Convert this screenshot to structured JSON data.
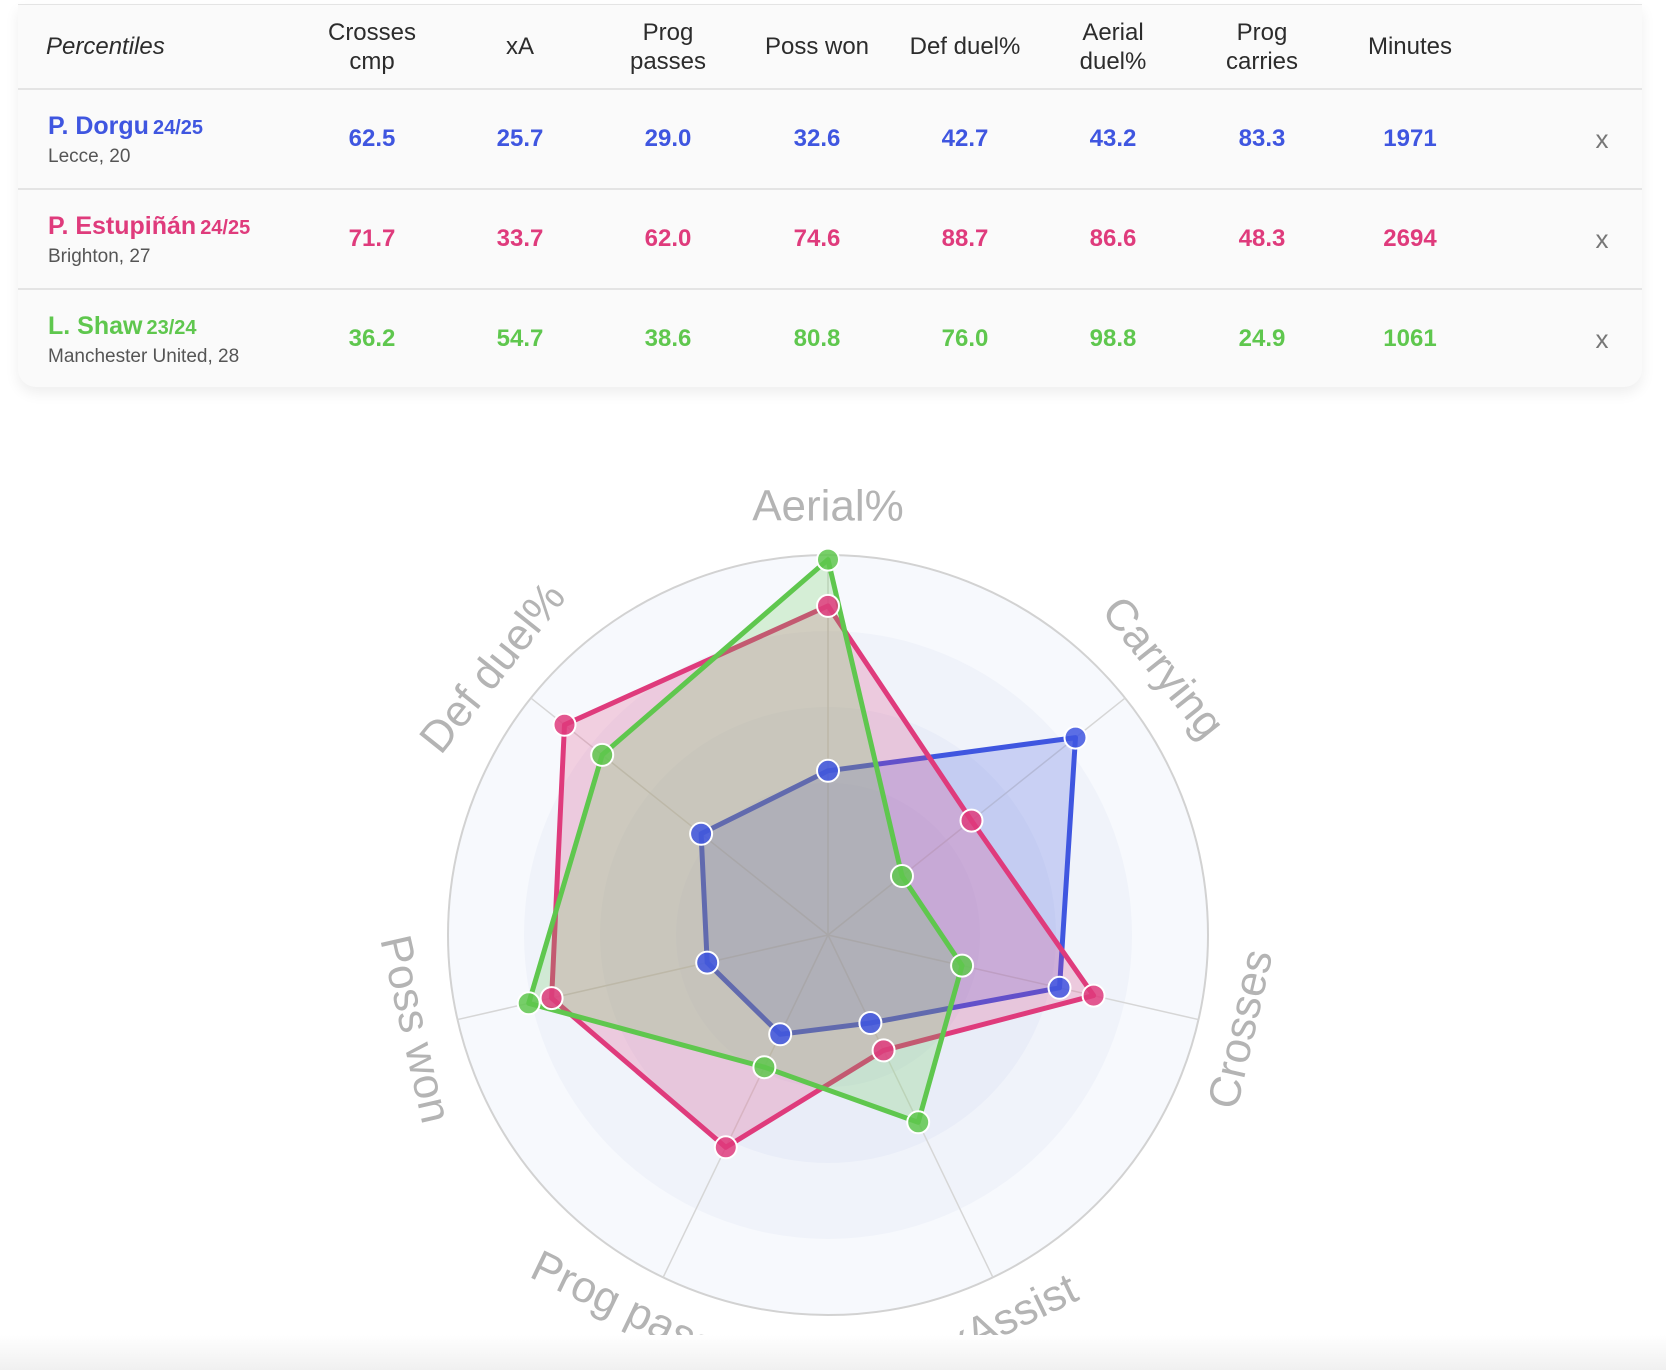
{
  "table": {
    "corner_label": "Percentiles",
    "headers": [
      [
        "Crosses",
        "cmp"
      ],
      [
        "xA"
      ],
      [
        "Prog",
        "passes"
      ],
      [
        "Poss won"
      ],
      [
        "Def duel%"
      ],
      [
        "Aerial",
        "duel%"
      ],
      [
        "Prog",
        "carries"
      ],
      [
        "Minutes"
      ]
    ],
    "remove_label": "x",
    "players": [
      {
        "name": "P. Dorgu",
        "season": "24/25",
        "team": "Lecce, 20",
        "color": "#3f56e0",
        "values": [
          "62.5",
          "25.7",
          "29.0",
          "32.6",
          "42.7",
          "43.2",
          "83.3",
          "1971"
        ]
      },
      {
        "name": "P. Estupiñán",
        "season": "24/25",
        "team": "Brighton, 27",
        "color": "#df3b7c",
        "values": [
          "71.7",
          "33.7",
          "62.0",
          "74.6",
          "88.7",
          "86.6",
          "48.3",
          "2694"
        ]
      },
      {
        "name": "L. Shaw",
        "season": "23/24",
        "team": "Manchester United, 28",
        "color": "#5fc74e",
        "values": [
          "36.2",
          "54.7",
          "38.6",
          "80.8",
          "76.0",
          "98.8",
          "24.9",
          "1061"
        ]
      }
    ]
  },
  "chart_data": {
    "type": "radar",
    "axes": [
      "Aerial%",
      "Carrying",
      "Crosses",
      "xAssist",
      "Prog passes",
      "Poss won",
      "Def duel%"
    ],
    "range": [
      0,
      100
    ],
    "series": [
      {
        "name": "P. Dorgu",
        "color": "#3f56e0",
        "values": [
          43.2,
          83.3,
          62.5,
          25.7,
          29.0,
          32.6,
          42.7
        ]
      },
      {
        "name": "P. Estupiñán",
        "color": "#df3b7c",
        "values": [
          86.6,
          48.3,
          71.7,
          33.7,
          62.0,
          74.6,
          88.7
        ]
      },
      {
        "name": "L. Shaw",
        "color": "#5fc74e",
        "values": [
          98.8,
          24.9,
          36.2,
          54.7,
          38.6,
          80.8,
          76.0
        ]
      }
    ]
  }
}
